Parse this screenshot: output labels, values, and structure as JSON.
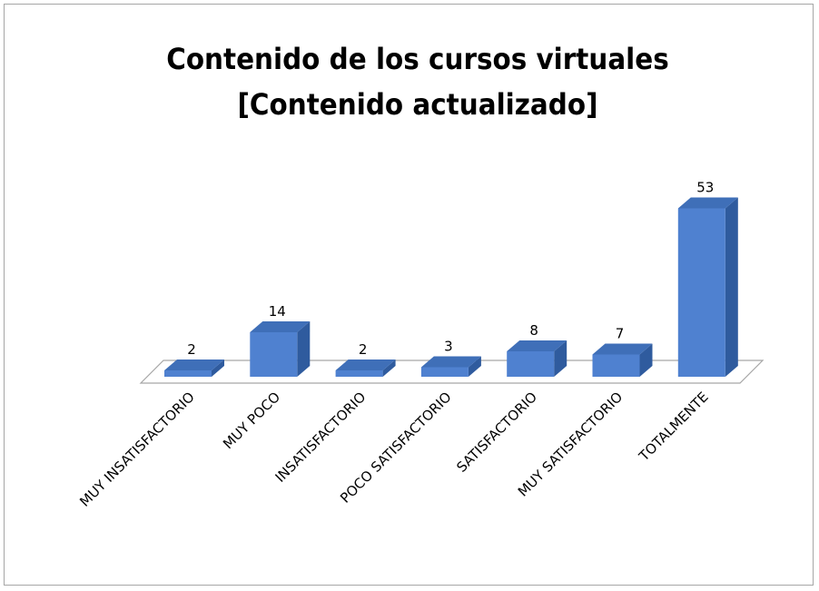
{
  "chart_data": {
    "type": "bar3d",
    "title": "Contenido de los cursos virtuales [Contenido actualizado]",
    "categories": [
      "MUY INSATISFACTORIO",
      "MUY POCO",
      "INSATISFACTORIO",
      "POCO SATISFACTORIO",
      "SATISFACTORIO",
      "MUY SATISFACTORIO",
      "TOTALMENTE"
    ],
    "values": [
      2,
      14,
      2,
      3,
      8,
      7,
      53
    ],
    "color": "#4f81d0"
  }
}
